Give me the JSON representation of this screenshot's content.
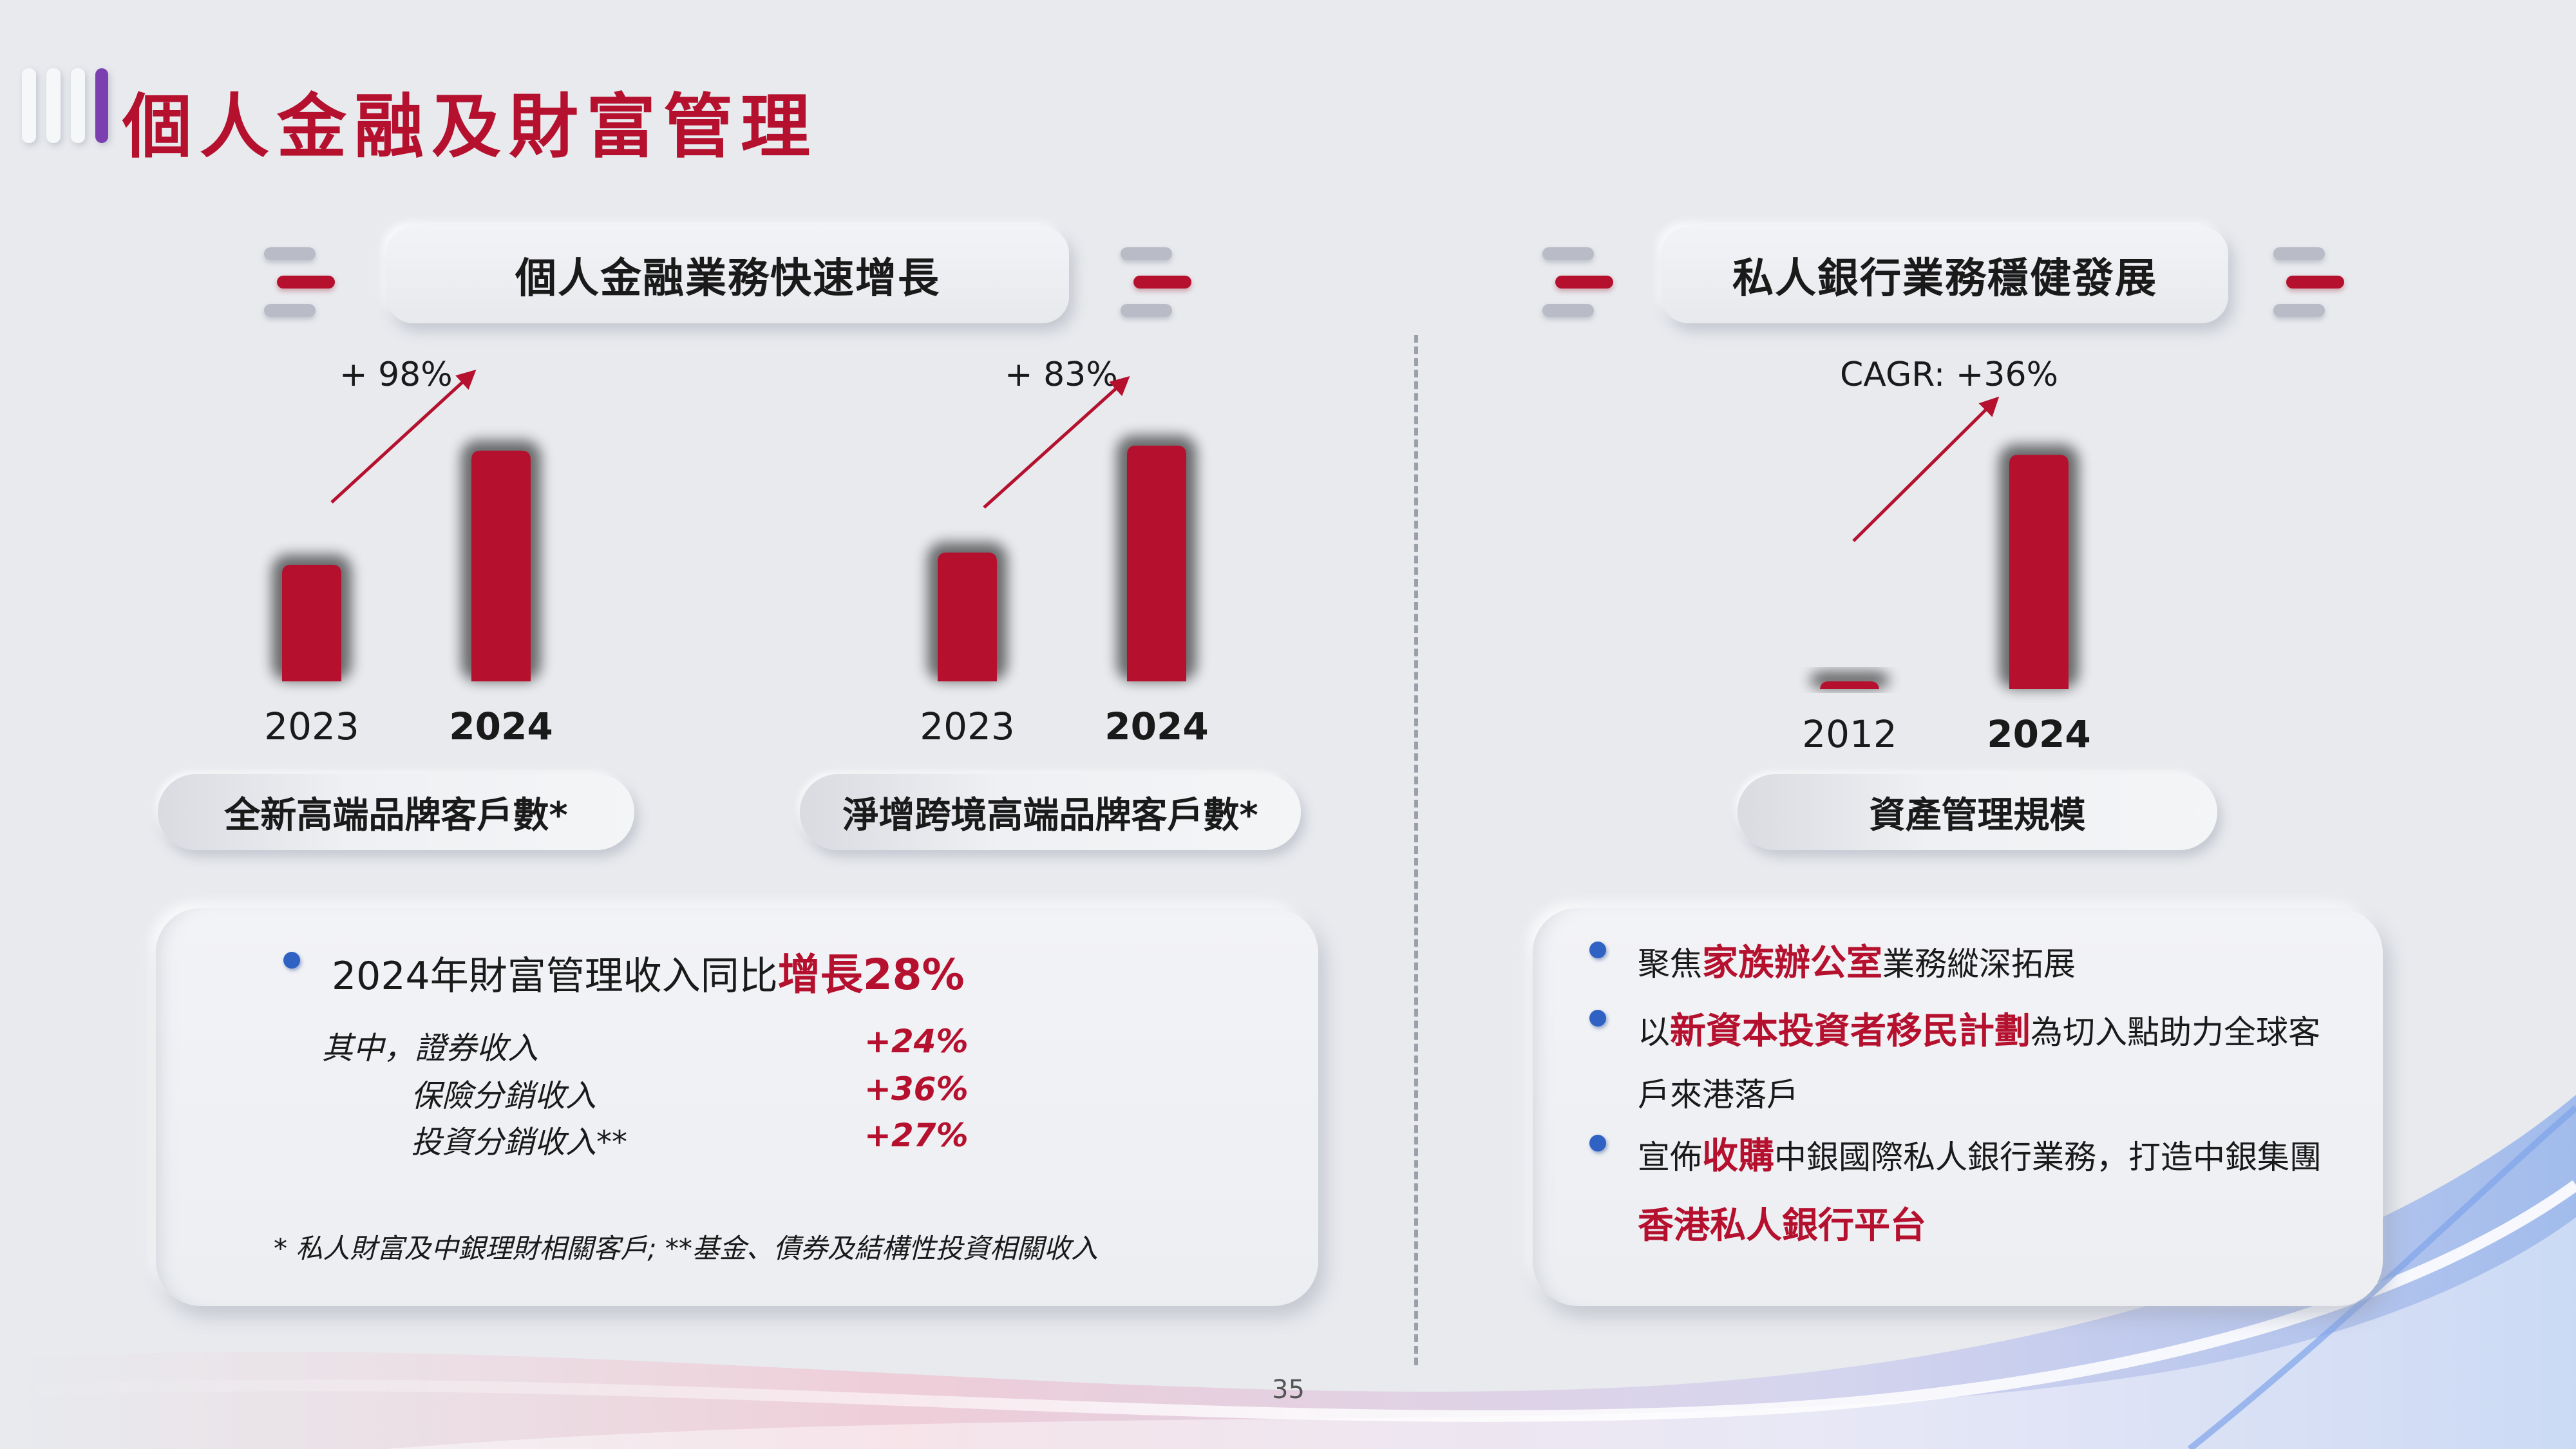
{
  "title": "個人金融及財富管理",
  "left_section": {
    "header": "個人金融業務快速增長",
    "charts": [
      {
        "growth_label": "+ 98%",
        "footer_label": "全新高端品牌客戶數*",
        "chart_data": {
          "type": "bar",
          "categories": [
            "2023",
            "2024"
          ],
          "values": [
            1,
            1.98
          ],
          "title": "全新高端品牌客戶數*",
          "xlabel": "",
          "ylabel": "",
          "ylim": [
            0,
            2.1
          ],
          "grid": false
        }
      },
      {
        "growth_label": "+ 83%",
        "footer_label": "淨增跨境高端品牌客戶數*",
        "chart_data": {
          "type": "bar",
          "categories": [
            "2023",
            "2024"
          ],
          "values": [
            1,
            1.83
          ],
          "title": "淨增跨境高端品牌客戶數*",
          "xlabel": "",
          "ylabel": "",
          "ylim": [
            0,
            1.9
          ],
          "grid": false
        }
      }
    ],
    "info": {
      "headline_prefix": "2024年財富管理收入同比",
      "headline_highlight": "增長28%",
      "rows": [
        {
          "label": "其中，證券收入",
          "value": "+24%"
        },
        {
          "label": "保險分銷收入",
          "value": "+36%"
        },
        {
          "label": "投資分銷收入**",
          "value": "+27%"
        }
      ],
      "footnote": "*  私人財富及中銀理財相關客戶;  **基金、債券及結構性投資相關收入"
    }
  },
  "right_section": {
    "header": "私人銀行業務穩健發展",
    "chart": {
      "growth_label": "CAGR: +36%",
      "footer_label": "資產管理規模",
      "chart_data": {
        "type": "bar",
        "categories": [
          "2012",
          "2024"
        ],
        "values": [
          1,
          40.2
        ],
        "title": "資產管理規模",
        "xlabel": "",
        "ylabel": "",
        "ylim": [
          0,
          42
        ],
        "grid": false
      }
    },
    "bullets": [
      {
        "pre": "聚焦",
        "hl": "家族辦公室",
        "post": "業務縱深拓展"
      },
      {
        "pre": "以",
        "hl": "新資本投資者移民計劃",
        "post": "為切入點助力全球客",
        "line2": "戶來港落戶"
      },
      {
        "pre": "宣佈",
        "hl": "收購",
        "post": "中銀國際私人銀行業務，打造中銀集團",
        "line2_hl": "香港私人銀行平台"
      }
    ]
  },
  "page_number": "35",
  "colors": {
    "accent_red": "#b5112f",
    "bullet_blue": "#2f62c2",
    "title_bar_purple": "#7b3fb0",
    "background": "#e8eaee"
  }
}
